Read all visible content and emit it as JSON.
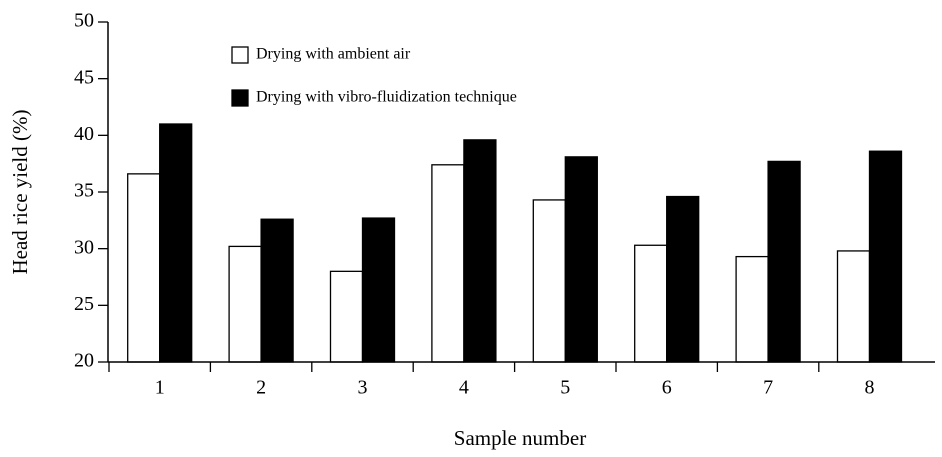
{
  "chart_data": {
    "type": "bar",
    "xlabel": "Sample number",
    "ylabel": "Head rice yield (%)",
    "categories": [
      "1",
      "2",
      "3",
      "4",
      "5",
      "6",
      "7",
      "8"
    ],
    "series": [
      {
        "name": "Drying with ambient air",
        "color": "#ffffff",
        "values": [
          36.6,
          30.2,
          28.0,
          37.4,
          34.3,
          30.3,
          29.3,
          29.8
        ]
      },
      {
        "name": "Drying with vibro-fluidization technique",
        "color": "#000000",
        "values": [
          41.0,
          32.6,
          32.7,
          39.6,
          38.1,
          34.6,
          37.7,
          38.6
        ]
      }
    ],
    "ylim": [
      20,
      50
    ],
    "yticks": [
      20,
      25,
      30,
      35,
      40,
      45,
      50
    ],
    "grid": false
  }
}
